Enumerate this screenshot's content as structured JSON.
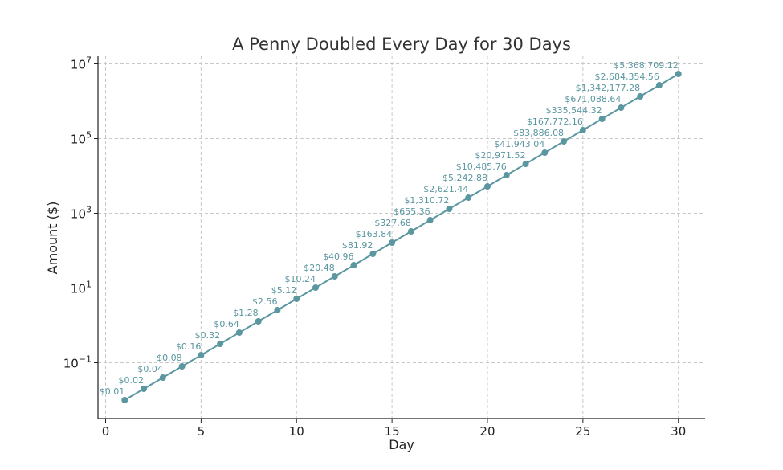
{
  "chart_data": {
    "type": "line",
    "title": "A Penny Doubled Every Day for 30 Days",
    "xlabel": "Day",
    "ylabel": "Amount ($)",
    "yscale": "log",
    "xlim": [
      -0.4,
      31.4
    ],
    "ylim": [
      0.0032,
      16000000
    ],
    "grid": true,
    "color": "#5b97a0",
    "x_ticks": [
      0,
      5,
      10,
      15,
      20,
      25,
      30
    ],
    "y_ticks": [
      {
        "value": 0.1,
        "base": "10",
        "exp": "−1"
      },
      {
        "value": 10,
        "base": "10",
        "exp": "1"
      },
      {
        "value": 1000,
        "base": "10",
        "exp": "3"
      },
      {
        "value": 100000,
        "base": "10",
        "exp": "5"
      },
      {
        "value": 10000000,
        "base": "10",
        "exp": "7"
      }
    ],
    "x": [
      1,
      2,
      3,
      4,
      5,
      6,
      7,
      8,
      9,
      10,
      11,
      12,
      13,
      14,
      15,
      16,
      17,
      18,
      19,
      20,
      21,
      22,
      23,
      24,
      25,
      26,
      27,
      28,
      29,
      30
    ],
    "values": [
      0.01,
      0.02,
      0.04,
      0.08,
      0.16,
      0.32,
      0.64,
      1.28,
      2.56,
      5.12,
      10.24,
      20.48,
      40.96,
      81.92,
      163.84,
      327.68,
      655.36,
      1310.72,
      2621.44,
      5242.88,
      10485.76,
      20971.52,
      41943.04,
      83886.08,
      167772.16,
      335544.32,
      671088.64,
      1342177.28,
      2684354.56,
      5368709.12
    ],
    "labels": [
      "$0.01",
      "$0.02",
      "$0.04",
      "$0.08",
      "$0.16",
      "$0.32",
      "$0.64",
      "$1.28",
      "$2.56",
      "$5.12",
      "$10.24",
      "$20.48",
      "$40.96",
      "$81.92",
      "$163.84",
      "$327.68",
      "$655.36",
      "$1,310.72",
      "$2,621.44",
      "$5,242.88",
      "$10,485.76",
      "$20,971.52",
      "$41,943.04",
      "$83,886.08",
      "$167,772.16",
      "$335,544.32",
      "$671,088.64",
      "$1,342,177.28",
      "$2,684,354.56",
      "$5,368,709.12"
    ]
  }
}
